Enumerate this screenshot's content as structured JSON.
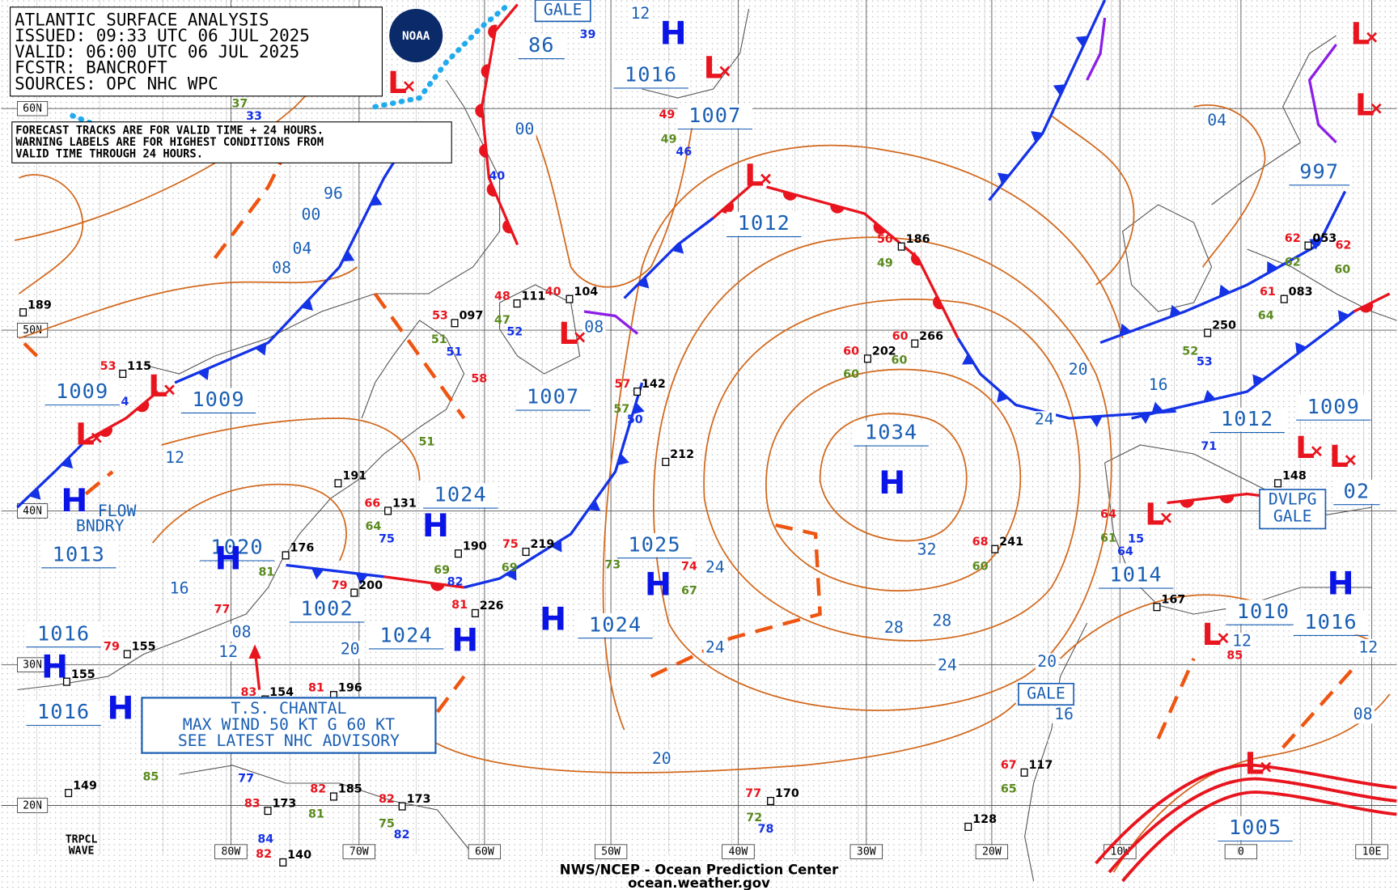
{
  "header": {
    "lines": [
      "ATLANTIC SURFACE ANALYSIS",
      "ISSUED: 09:33 UTC 06 JUL 2025",
      "VALID:  06:00 UTC 06 JUL 2025",
      "FCSTR:  BANCROFT",
      "SOURCES: OPC NHC WPC"
    ]
  },
  "notes": {
    "lines": [
      "FORECAST TRACKS ARE FOR VALID TIME + 24 HOURS.",
      "WARNING LABELS ARE FOR HIGHEST CONDITIONS FROM",
      "VALID TIME THROUGH 24 HOURS."
    ]
  },
  "logo": "NOAA",
  "grid": {
    "lat_labels": [
      "60N",
      "50N",
      "40N",
      "30N",
      "20N"
    ],
    "lon_labels": [
      "80W",
      "70W",
      "60W",
      "50W",
      "40W",
      "30W",
      "20W",
      "10W",
      "0",
      "10E"
    ]
  },
  "pressure_labels": [
    "1016",
    "1007",
    "1012",
    "1009",
    "1009",
    "1007",
    "1034",
    "1024",
    "1025",
    "1020",
    "1013",
    "1002",
    "1024",
    "1024",
    "1016",
    "1016",
    "1014",
    "1010",
    "1016",
    "1012",
    "1009",
    "997",
    "1005",
    "86",
    "02"
  ],
  "isobar_labels": [
    "96",
    "00",
    "04",
    "08",
    "12",
    "16",
    "20",
    "12",
    "08",
    "00",
    "08",
    "12",
    "04",
    "20",
    "16",
    "24",
    "32",
    "28",
    "28",
    "24",
    "20",
    "16",
    "24",
    "24",
    "20",
    "12",
    "12",
    "08"
  ],
  "highs": [
    "H",
    "H",
    "H",
    "H",
    "H",
    "H",
    "H",
    "H",
    "H",
    "H",
    "H"
  ],
  "lows": [
    "L",
    "L",
    "L",
    "L",
    "L",
    "L",
    "L",
    "L",
    "L",
    "L",
    "L",
    "L",
    "L"
  ],
  "stations": {
    "pressures": [
      "186",
      "266",
      "202",
      "104",
      "111",
      "097",
      "115",
      "142",
      "212",
      "191",
      "131",
      "176",
      "190",
      "219",
      "200",
      "226",
      "241",
      "167",
      "250",
      "053",
      "083",
      "148",
      "155",
      "155",
      "154",
      "196",
      "185",
      "173",
      "173",
      "140",
      "170",
      "128",
      "117",
      "149",
      "189"
    ],
    "temperatures": [
      "50",
      "60",
      "60",
      "40",
      "48",
      "53",
      "53",
      "57",
      "58",
      "66",
      "75",
      "74",
      "79",
      "81",
      "68",
      "64",
      "61",
      "62",
      "62",
      "77",
      "79",
      "83",
      "81",
      "82",
      "83",
      "82",
      "82",
      "77",
      "67",
      "49",
      "85"
    ],
    "dewpoints": [
      "49",
      "60",
      "60",
      "51",
      "47",
      "64",
      "69",
      "69",
      "73",
      "67",
      "60",
      "61",
      "62",
      "60",
      "64",
      "52",
      "81",
      "85",
      "75",
      "81",
      "72",
      "65",
      "49",
      "37",
      "51",
      "57"
    ],
    "other": [
      "4",
      "75",
      "82",
      "40",
      "46",
      "52",
      "51",
      "50",
      "53",
      "71",
      "64",
      "15",
      "84",
      "78",
      "82",
      "33",
      "39",
      "77"
    ]
  },
  "warnings": [
    "GALE",
    "GALE",
    "DVLPG",
    "GALE"
  ],
  "storm": {
    "lines": [
      "T.S. CHANTAL",
      "MAX WIND 50 KT G 60 KT",
      "SEE LATEST NHC ADVISORY"
    ]
  },
  "features": {
    "boundary": [
      "FLOW",
      "BNDRY"
    ],
    "wave": [
      "TRPCL",
      "WAVE"
    ]
  },
  "footer": [
    "NWS/NCEP - Ocean Prediction Center",
    "ocean.weather.gov"
  ]
}
